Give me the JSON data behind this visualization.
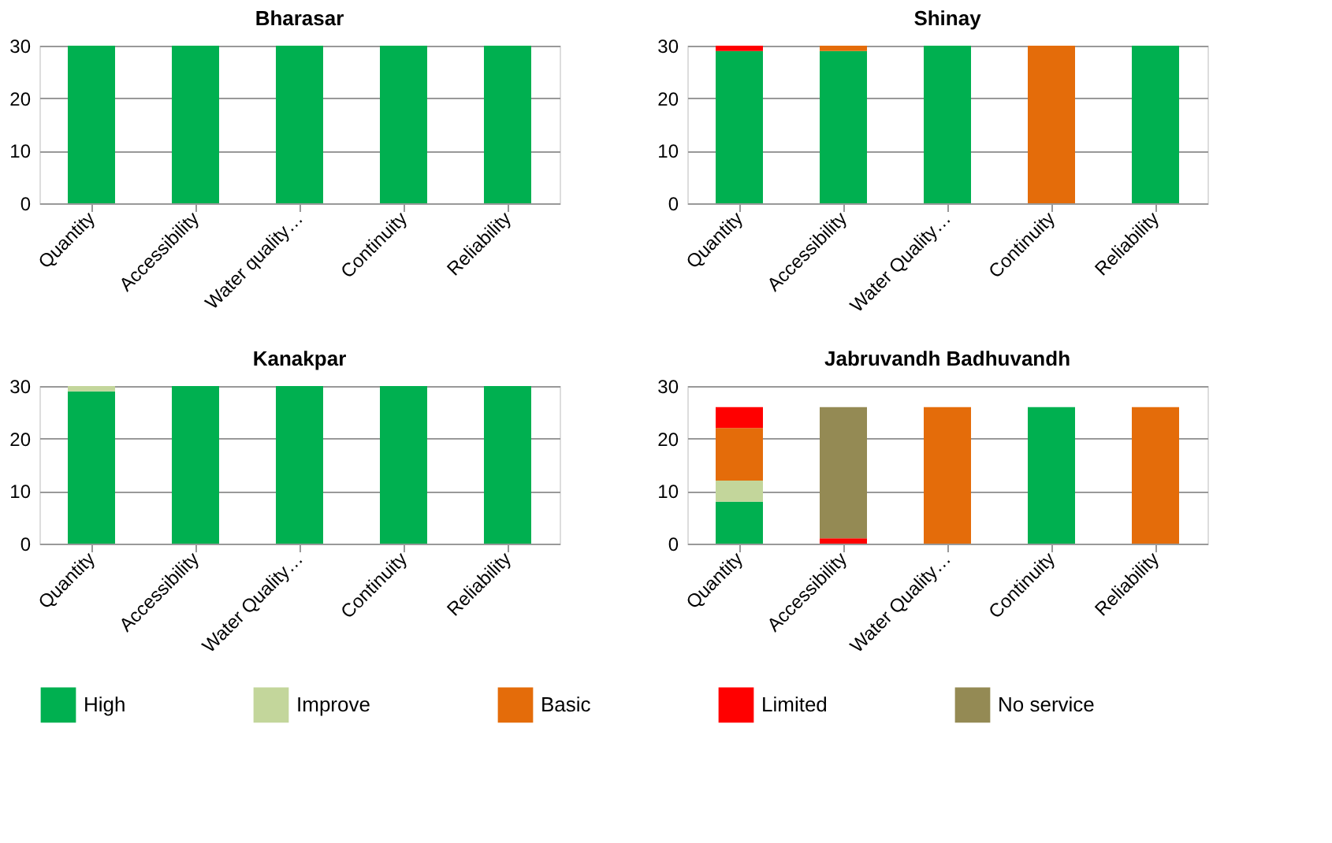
{
  "chart_data": [
    {
      "type": "bar",
      "stacked": true,
      "title": "Bharasar",
      "categories": [
        "Quantity",
        "Accessibility",
        "Water quality…",
        "Continuity",
        "Reliability"
      ],
      "ylim": [
        0,
        30
      ],
      "yticks": [
        0,
        10,
        20,
        30
      ],
      "grid": "y",
      "legend": "bottom",
      "series": [
        {
          "name": "High",
          "color": "#00b050",
          "values": [
            30,
            30,
            30,
            30,
            30
          ]
        },
        {
          "name": "Improve",
          "color": "#c3d69b",
          "values": [
            0,
            0,
            0,
            0,
            0
          ]
        },
        {
          "name": "Basic",
          "color": "#e46c0a",
          "values": [
            0,
            0,
            0,
            0,
            0
          ]
        },
        {
          "name": "Limited",
          "color": "#ff0000",
          "values": [
            0,
            0,
            0,
            0,
            0
          ]
        },
        {
          "name": "No service",
          "color": "#948a54",
          "values": [
            0,
            0,
            0,
            0,
            0
          ]
        }
      ]
    },
    {
      "type": "bar",
      "stacked": true,
      "title": "Shinay",
      "categories": [
        "Quantity",
        "Accessibility",
        "Water Quality…",
        "Continuity",
        "Reliability"
      ],
      "ylim": [
        0,
        30
      ],
      "yticks": [
        0,
        10,
        20,
        30
      ],
      "grid": "y",
      "series": [
        {
          "color": "#00b050",
          "values": [
            29,
            29,
            30,
            0,
            30
          ]
        },
        {
          "color": "#c3d69b",
          "values": [
            0,
            0,
            0,
            0,
            0
          ]
        },
        {
          "color": "#e46c0a",
          "values": [
            0,
            1,
            0,
            30,
            0
          ]
        },
        {
          "color": "#ff0000",
          "values": [
            1,
            0,
            0,
            0,
            0
          ]
        },
        {
          "color": "#948a54",
          "values": [
            0,
            0,
            0,
            0,
            0
          ]
        }
      ]
    },
    {
      "type": "bar",
      "stacked": true,
      "title": "Kanakpar",
      "categories": [
        "Quantity",
        "Accessibility",
        "Water Quality…",
        "Continuity",
        "Reliability"
      ],
      "ylim": [
        0,
        30
      ],
      "yticks": [
        0,
        10,
        20,
        30
      ],
      "grid": "y",
      "series": [
        {
          "color": "#00b050",
          "values": [
            29,
            30,
            30,
            30,
            30
          ]
        },
        {
          "color": "#c3d69b",
          "values": [
            1,
            0,
            0,
            0,
            0
          ]
        },
        {
          "color": "#e46c0a",
          "values": [
            0,
            0,
            0,
            0,
            0
          ]
        },
        {
          "color": "#ff0000",
          "values": [
            0,
            0,
            0,
            0,
            0
          ]
        },
        {
          "color": "#948a54",
          "values": [
            0,
            0,
            0,
            0,
            0
          ]
        }
      ]
    },
    {
      "type": "bar",
      "stacked": true,
      "title": "Jabruvandh Badhuvandh",
      "categories": [
        "Quantity",
        "Accessibility",
        "Water Quality…",
        "Continuity",
        "Reliability"
      ],
      "ylim": [
        0,
        30
      ],
      "yticks": [
        0,
        10,
        20,
        30
      ],
      "grid": "y",
      "series": [
        {
          "color": "#00b050",
          "values": [
            8,
            0,
            0,
            26,
            0
          ]
        },
        {
          "color": "#c3d69b",
          "values": [
            4,
            0,
            0,
            0,
            0
          ]
        },
        {
          "color": "#e46c0a",
          "values": [
            10,
            0,
            26,
            0,
            26
          ]
        },
        {
          "color": "#ff0000",
          "values": [
            4,
            1,
            0,
            0,
            0
          ]
        },
        {
          "color": "#948a54",
          "values": [
            0,
            25,
            0,
            0,
            0
          ]
        }
      ]
    }
  ]
}
